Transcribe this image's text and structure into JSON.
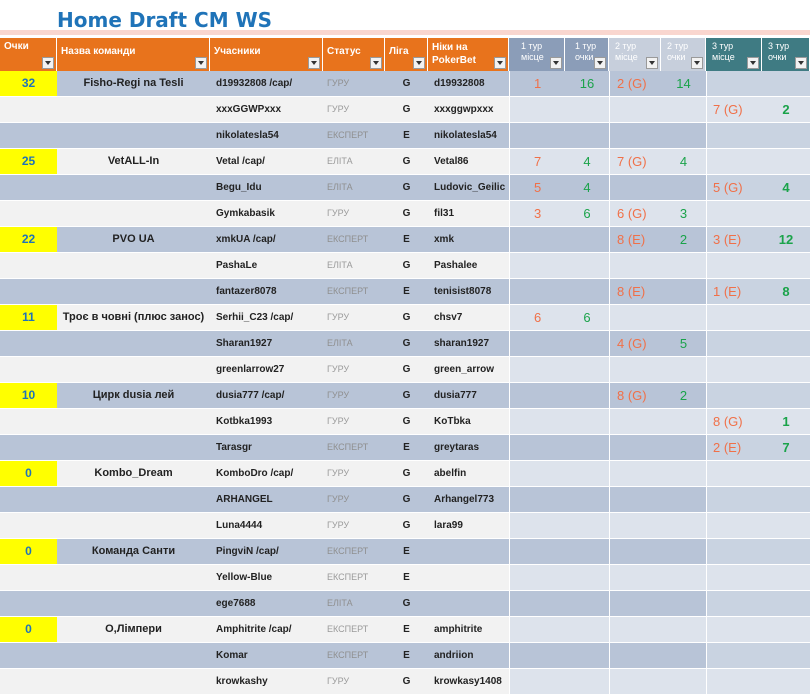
{
  "title": "Home Draft CM WS",
  "headers": [
    "Очки",
    "Назва команди",
    "Учасники",
    "Статус",
    "Ліга",
    "Ніки на PokerBet",
    "1 тур місце",
    "1 тур очки",
    "2 тур місце",
    "2 тур очки",
    "3 тур місце",
    "3 тур очки"
  ],
  "rows": [
    {
      "points": "32",
      "team": "Fisho-Regi na Tesli",
      "player": "d19932808 /cap/",
      "status": "ГУРУ",
      "league": "G",
      "nick": "d19932808",
      "t1p": "1",
      "t1s": "16",
      "t2p": "2 (G)",
      "t2s": "14",
      "t3p": "",
      "t3s": ""
    },
    {
      "points": "",
      "team": "",
      "player": "xxxGGWPxxx",
      "status": "ГУРУ",
      "league": "G",
      "nick": "xxxggwpxxx",
      "t1p": "",
      "t1s": "",
      "t2p": "",
      "t2s": "",
      "t3p": "7 (G)",
      "t3s": "2"
    },
    {
      "points": "",
      "team": "",
      "player": "nikolatesla54",
      "status": "ЕКСПЕРТ",
      "league": "E",
      "nick": "nikolatesla54",
      "t1p": "",
      "t1s": "",
      "t2p": "",
      "t2s": "",
      "t3p": "",
      "t3s": ""
    },
    {
      "points": "25",
      "team": "VetALL-In",
      "player": "Vetal /cap/",
      "status": "ЕЛІТА",
      "league": "G",
      "nick": "Vetal86",
      "t1p": "7",
      "t1s": "4",
      "t2p": "7 (G)",
      "t2s": "4",
      "t3p": "",
      "t3s": ""
    },
    {
      "points": "",
      "team": "",
      "player": "Begu_Idu",
      "status": "ЕЛІТА",
      "league": "G",
      "nick": "Ludovic_Geilic",
      "t1p": "5",
      "t1s": "4",
      "t2p": "",
      "t2s": "",
      "t3p": "5 (G)",
      "t3s": "4"
    },
    {
      "points": "",
      "team": "",
      "player": "Gymkabasik",
      "status": "ГУРУ",
      "league": "G",
      "nick": "fil31",
      "t1p": "3",
      "t1s": "6",
      "t2p": "6 (G)",
      "t2s": "3",
      "t3p": "",
      "t3s": ""
    },
    {
      "points": "22",
      "team": "PVO UA",
      "player": "xmkUA /cap/",
      "status": "ЕКСПЕРТ",
      "league": "E",
      "nick": "xmk",
      "t1p": "",
      "t1s": "",
      "t2p": "8 (E)",
      "t2s": "2",
      "t3p": "3 (E)",
      "t3s": "12"
    },
    {
      "points": "",
      "team": "",
      "player": "PashaLe",
      "status": "ЕЛІТА",
      "league": "G",
      "nick": "Pashalee",
      "t1p": "",
      "t1s": "",
      "t2p": "",
      "t2s": "",
      "t3p": "",
      "t3s": ""
    },
    {
      "points": "",
      "team": "",
      "player": "fantazer8078",
      "status": "ЕКСПЕРТ",
      "league": "E",
      "nick": "tenisist8078",
      "t1p": "",
      "t1s": "",
      "t2p": "8 (E)",
      "t2s": "",
      "t3p": "1 (E)",
      "t3s": "8"
    },
    {
      "points": "11",
      "team": "Троє в човні (плюс занос)",
      "player": "Serhii_C23 /cap/",
      "status": "ГУРУ",
      "league": "G",
      "nick": "chsv7",
      "t1p": "6",
      "t1s": "6",
      "t2p": "",
      "t2s": "",
      "t3p": "",
      "t3s": ""
    },
    {
      "points": "",
      "team": "",
      "player": "Sharan1927",
      "status": "ЕЛІТА",
      "league": "G",
      "nick": "sharan1927",
      "t1p": "",
      "t1s": "",
      "t2p": "4 (G)",
      "t2s": "5",
      "t3p": "",
      "t3s": ""
    },
    {
      "points": "",
      "team": "",
      "player": "greenlarrow27",
      "status": "ГУРУ",
      "league": "G",
      "nick": "green_arrow",
      "t1p": "",
      "t1s": "",
      "t2p": "",
      "t2s": "",
      "t3p": "",
      "t3s": ""
    },
    {
      "points": "10",
      "team": "Цирк dusia лей",
      "player": "dusia777 /cap/",
      "status": "ГУРУ",
      "league": "G",
      "nick": "dusia777",
      "t1p": "",
      "t1s": "",
      "t2p": "8 (G)",
      "t2s": "2",
      "t3p": "",
      "t3s": ""
    },
    {
      "points": "",
      "team": "",
      "player": "Kotbka1993",
      "status": "ГУРУ",
      "league": "G",
      "nick": "KoTbka",
      "t1p": "",
      "t1s": "",
      "t2p": "",
      "t2s": "",
      "t3p": "8 (G)",
      "t3s": "1"
    },
    {
      "points": "",
      "team": "",
      "player": "Tarasgr",
      "status": "ЕКСПЕРТ",
      "league": "E",
      "nick": "greytaras",
      "t1p": "",
      "t1s": "",
      "t2p": "",
      "t2s": "",
      "t3p": "2 (E)",
      "t3s": "7"
    },
    {
      "points": "0",
      "team": "Kombo_Dream",
      "player": "KomboDro /cap/",
      "status": "ГУРУ",
      "league": "G",
      "nick": "abelfin",
      "t1p": "",
      "t1s": "",
      "t2p": "",
      "t2s": "",
      "t3p": "",
      "t3s": ""
    },
    {
      "points": "",
      "team": "",
      "player": "ARHANGEL",
      "status": "ГУРУ",
      "league": "G",
      "nick": "Arhangel773",
      "t1p": "",
      "t1s": "",
      "t2p": "",
      "t2s": "",
      "t3p": "",
      "t3s": ""
    },
    {
      "points": "",
      "team": "",
      "player": "Luna4444",
      "status": "ГУРУ",
      "league": "G",
      "nick": "lara99",
      "t1p": "",
      "t1s": "",
      "t2p": "",
      "t2s": "",
      "t3p": "",
      "t3s": ""
    },
    {
      "points": "0",
      "team": "Команда Санти",
      "player": "PingviN /cap/",
      "status": "ЕКСПЕРТ",
      "league": "E",
      "nick": "",
      "t1p": "",
      "t1s": "",
      "t2p": "",
      "t2s": "",
      "t3p": "",
      "t3s": ""
    },
    {
      "points": "",
      "team": "",
      "player": "Yellow-Blue",
      "status": "ЕКСПЕРТ",
      "league": "E",
      "nick": "",
      "t1p": "",
      "t1s": "",
      "t2p": "",
      "t2s": "",
      "t3p": "",
      "t3s": ""
    },
    {
      "points": "",
      "team": "",
      "player": "ege7688",
      "status": "ЕЛІТА",
      "league": "G",
      "nick": "",
      "t1p": "",
      "t1s": "",
      "t2p": "",
      "t2s": "",
      "t3p": "",
      "t3s": ""
    },
    {
      "points": "0",
      "team": "О,Лімпери",
      "player": "Amphitrite /cap/",
      "status": "ЕКСПЕРТ",
      "league": "E",
      "nick": "amphitrite",
      "t1p": "",
      "t1s": "",
      "t2p": "",
      "t2s": "",
      "t3p": "",
      "t3s": ""
    },
    {
      "points": "",
      "team": "",
      "player": "Komar",
      "status": "ЕКСПЕРТ",
      "league": "E",
      "nick": "andriion",
      "t1p": "",
      "t1s": "",
      "t2p": "",
      "t2s": "",
      "t3p": "",
      "t3s": ""
    },
    {
      "points": "",
      "team": "",
      "player": "krowkashy",
      "status": "ГУРУ",
      "league": "G",
      "nick": "krowkasy1408",
      "t1p": "",
      "t1s": "",
      "t2p": "",
      "t2s": "",
      "t3p": "",
      "t3s": ""
    }
  ]
}
